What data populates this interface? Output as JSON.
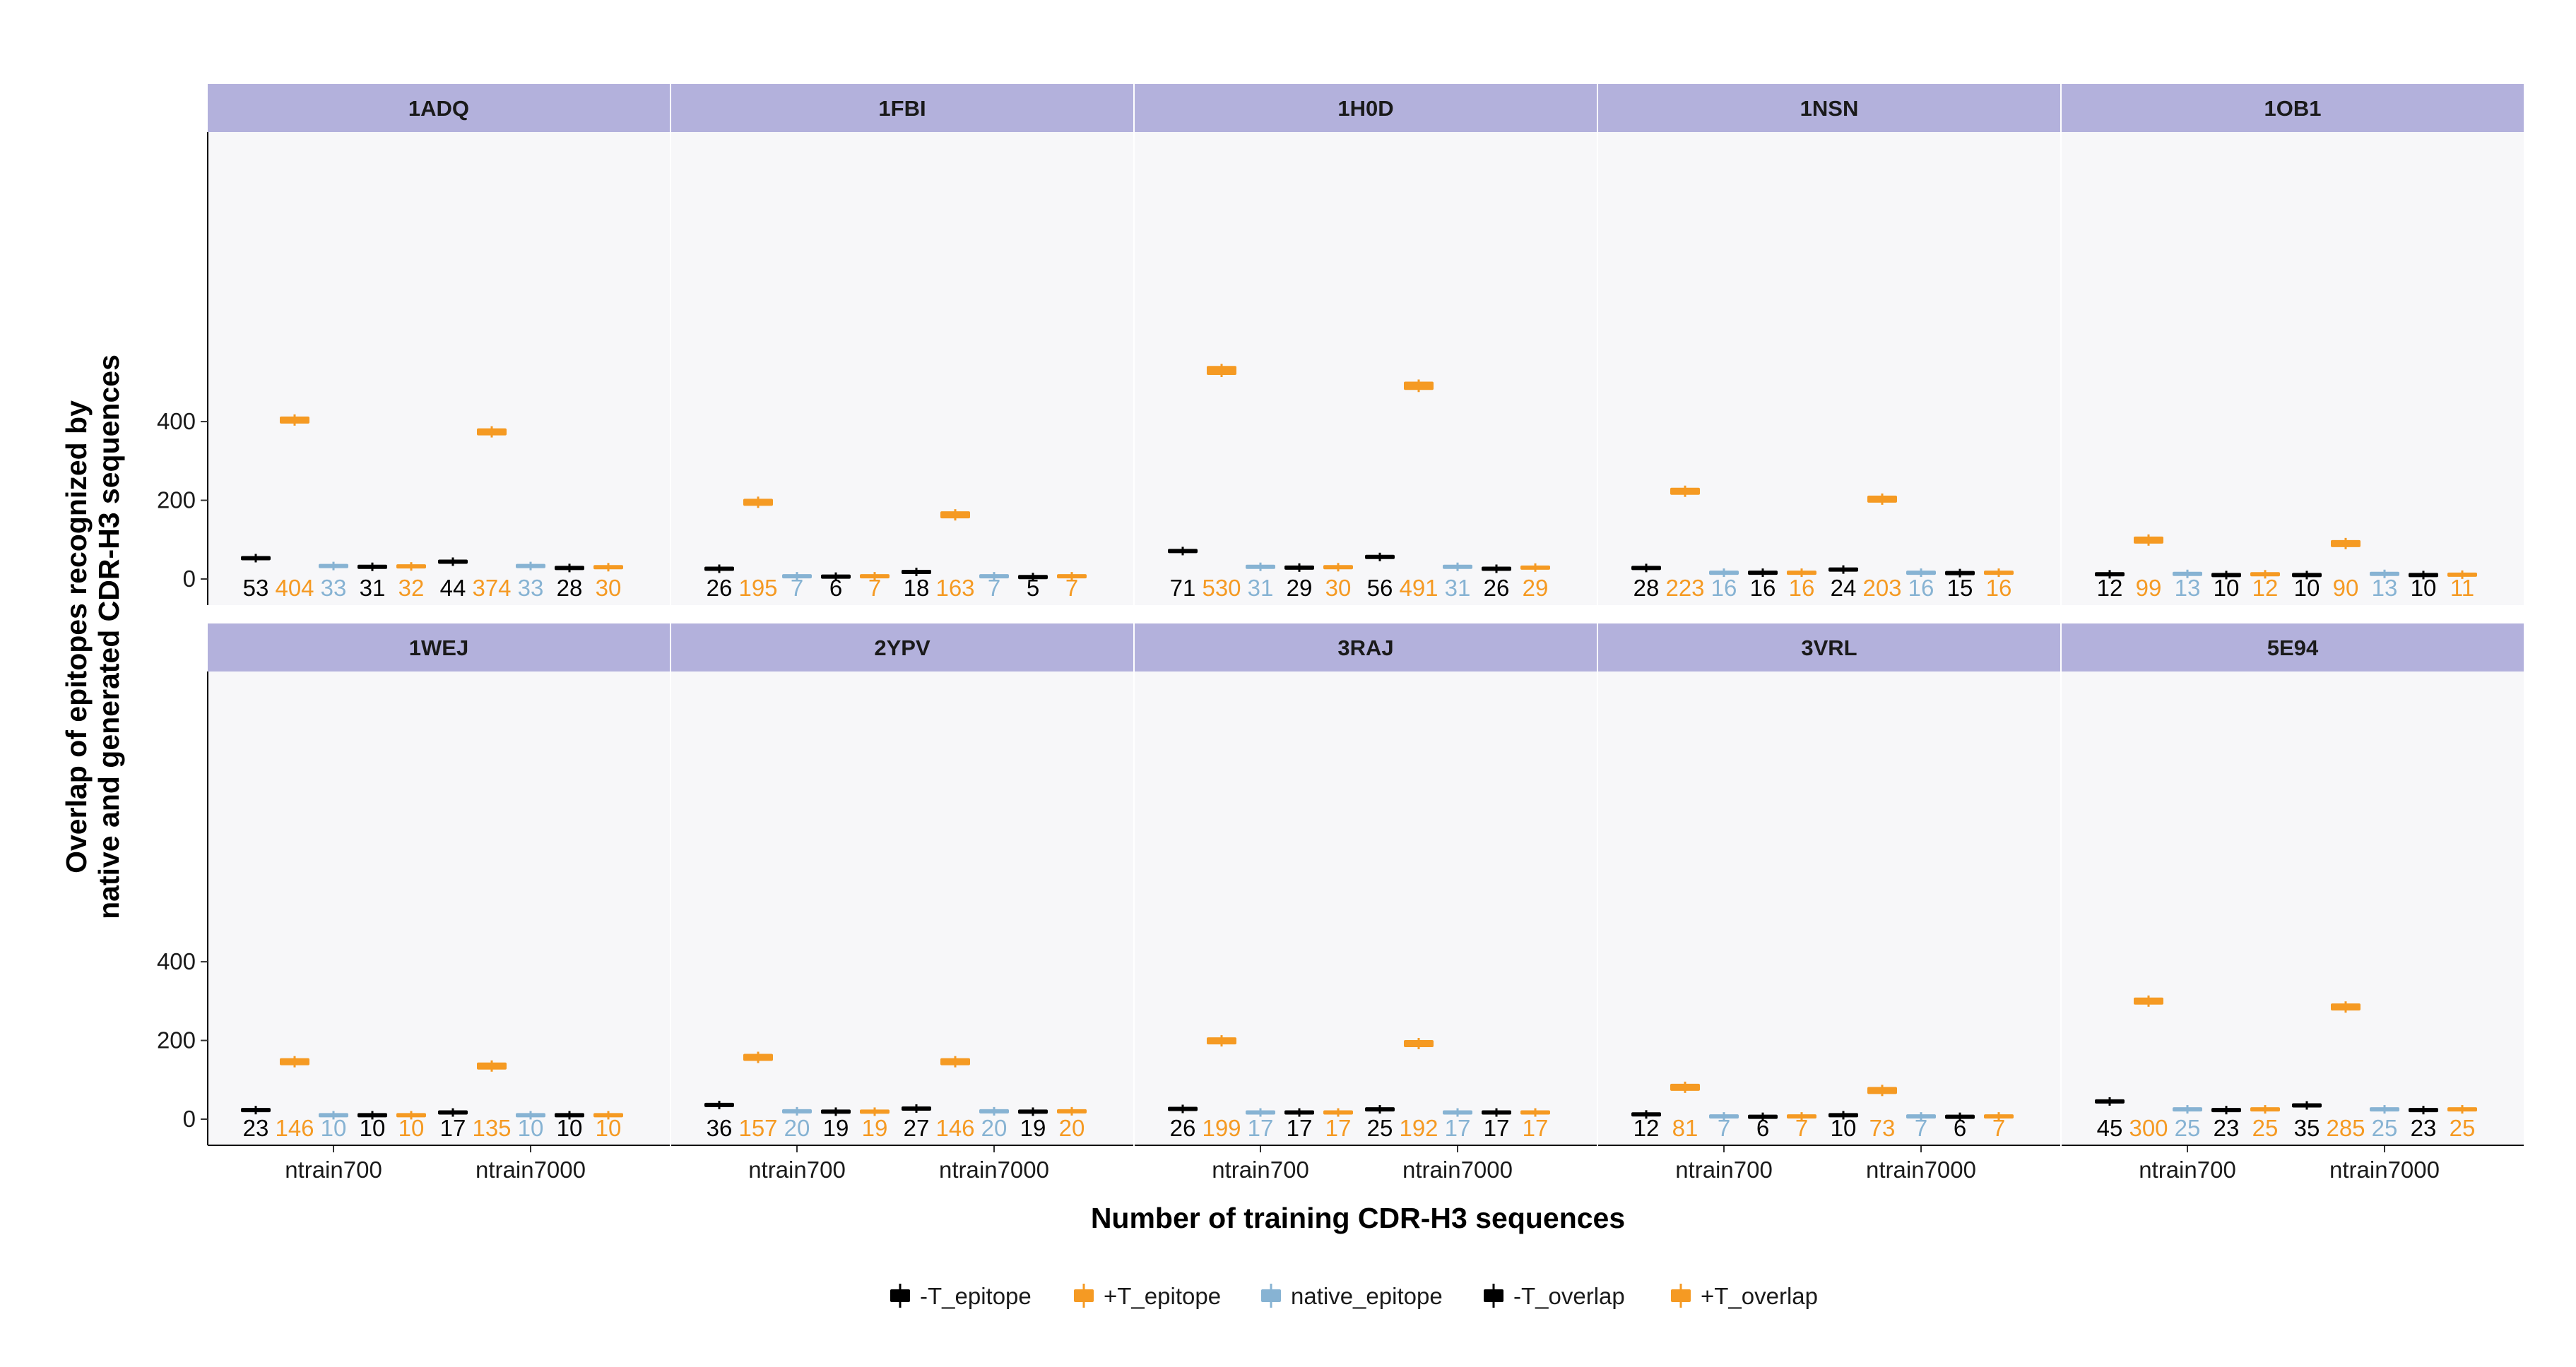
{
  "chart_data": {
    "type": "boxplot-facets",
    "ylabel_line1": "Overlap of epitopes recognized by",
    "ylabel_line2": "native and generated CDR-H3 sequences",
    "xlabel": "Number of training CDR-H3 sequences",
    "x_categories": [
      "ntrain700",
      "ntrain7000"
    ],
    "y_ticks": [
      0,
      200,
      400
    ],
    "ylim": [
      -30,
      560
    ],
    "series_order": [
      "-T_epitope",
      "+T_epitope",
      "native_epitope",
      "-T_overlap",
      "+T_overlap"
    ],
    "legend": [
      {
        "name": "-T_epitope",
        "color": "#000000"
      },
      {
        "name": "+T_epitope",
        "color": "#F59A23"
      },
      {
        "name": "native_epitope",
        "color": "#87B3D3"
      },
      {
        "name": "-T_overlap",
        "color": "#000000"
      },
      {
        "name": "+T_overlap",
        "color": "#F59A23"
      }
    ],
    "facets": [
      {
        "label": "1ADQ",
        "groups": [
          [
            53,
            404,
            33,
            31,
            32
          ],
          [
            44,
            374,
            33,
            28,
            30
          ]
        ]
      },
      {
        "label": "1FBI",
        "groups": [
          [
            26,
            195,
            7,
            6,
            7
          ],
          [
            18,
            163,
            7,
            5,
            7
          ]
        ]
      },
      {
        "label": "1H0D",
        "groups": [
          [
            71,
            530,
            31,
            29,
            30
          ],
          [
            56,
            491,
            31,
            26,
            29
          ]
        ]
      },
      {
        "label": "1NSN",
        "groups": [
          [
            28,
            223,
            16,
            16,
            16
          ],
          [
            24,
            203,
            16,
            15,
            16
          ]
        ]
      },
      {
        "label": "1OB1",
        "groups": [
          [
            12,
            99,
            13,
            10,
            12
          ],
          [
            10,
            90,
            13,
            10,
            11
          ]
        ]
      },
      {
        "label": "1WEJ",
        "groups": [
          [
            23,
            146,
            10,
            10,
            10
          ],
          [
            17,
            135,
            10,
            10,
            10
          ]
        ]
      },
      {
        "label": "2YPV",
        "groups": [
          [
            36,
            157,
            20,
            19,
            19
          ],
          [
            27,
            146,
            20,
            19,
            20
          ]
        ]
      },
      {
        "label": "3RAJ",
        "groups": [
          [
            26,
            199,
            17,
            17,
            17
          ],
          [
            25,
            192,
            17,
            17,
            17
          ]
        ]
      },
      {
        "label": "3VRL",
        "groups": [
          [
            12,
            81,
            7,
            6,
            7
          ],
          [
            10,
            73,
            7,
            6,
            7
          ]
        ]
      },
      {
        "label": "5E94",
        "groups": [
          [
            45,
            300,
            25,
            23,
            25
          ],
          [
            35,
            285,
            25,
            23,
            25
          ]
        ]
      }
    ]
  },
  "colors": {
    "black": "#000000",
    "orange": "#F59A23",
    "blue": "#87B3D3",
    "strip": "#B3B1DC",
    "panel": "#F7F7F9"
  }
}
